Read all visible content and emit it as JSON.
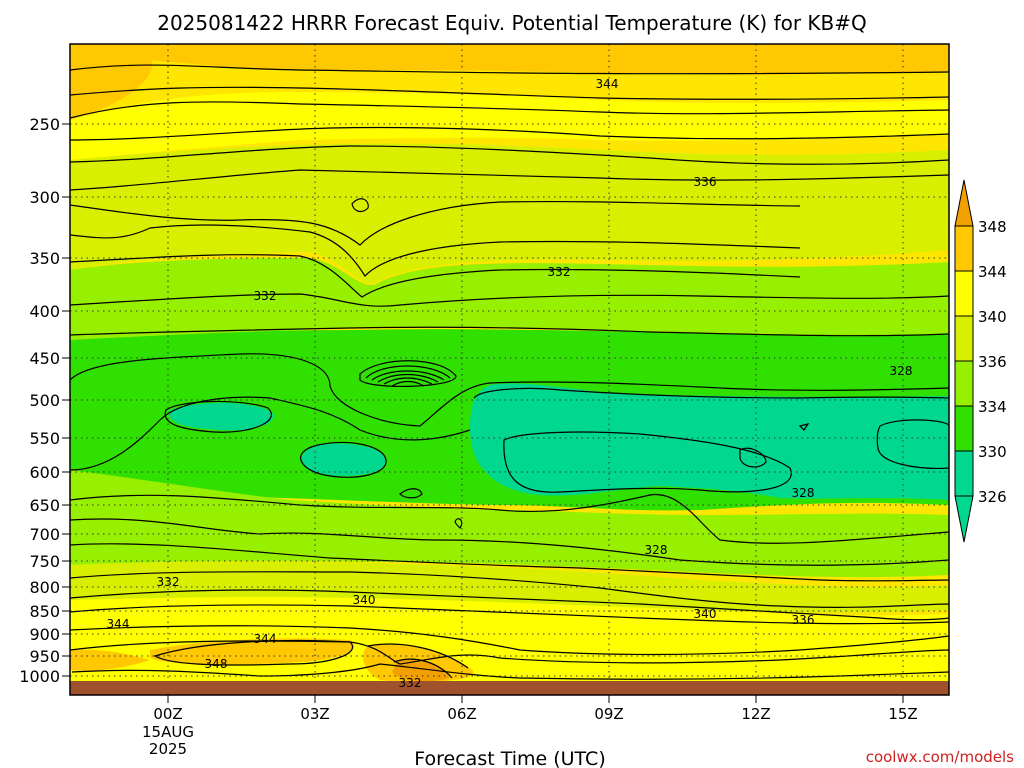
{
  "title": "2025081422 HRRR Forecast Equiv. Potential Temperature (K) for KB#Q",
  "xlabel": "Forecast Time (UTC)",
  "credit": "coolwx.com/models",
  "chart_data": {
    "type": "heatmap",
    "title": "2025081422 HRRR Forecast Equiv. Potential Temperature (K) for KB#Q",
    "xlabel": "Forecast Time (UTC)",
    "ylabel": "",
    "x_ticks": [
      {
        "label": "00Z",
        "sublabels": [
          "15AUG",
          "2025"
        ]
      },
      {
        "label": "03Z"
      },
      {
        "label": "06Z"
      },
      {
        "label": "09Z"
      },
      {
        "label": "12Z"
      },
      {
        "label": "15Z"
      }
    ],
    "y_ticks": [
      "250",
      "300",
      "350",
      "400",
      "450",
      "500",
      "550",
      "600",
      "650",
      "700",
      "750",
      "800",
      "850",
      "900",
      "950",
      "1000"
    ],
    "y_scale": "log-pressure",
    "y_units": "hPa",
    "colorbar": {
      "levels": [
        "348",
        "344",
        "340",
        "336",
        "334",
        "330",
        "326"
      ],
      "extend": "both",
      "colors": [
        "#f2a000",
        "#ffc800",
        "#ffff00",
        "#d8f000",
        "#96f000",
        "#30e000",
        "#00d890"
      ]
    },
    "contour_labels": [
      "344",
      "336",
      "332",
      "332",
      "328",
      "328",
      "328",
      "332",
      "340",
      "340",
      "344",
      "344",
      "348",
      "332",
      "336"
    ],
    "grid": true
  }
}
